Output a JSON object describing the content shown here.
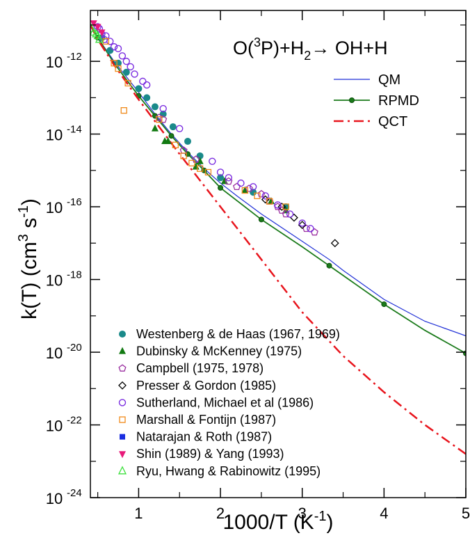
{
  "chart_data": {
    "type": "scatter",
    "title": "O(3P)+H2→ OH+H",
    "title_parts": {
      "a": "O(",
      "sup": "3",
      "b": "P)+H",
      "sub": "2",
      "c": "→ OH+H"
    },
    "xlabel": "1000/T (K-1)",
    "xlabel_parts": {
      "main": "1000/T (K",
      "sup": "-1",
      "close": ")"
    },
    "ylabel": "k(T) (cm3 s-1)",
    "ylabel_parts": {
      "a": "k(T) (cm",
      "sup1": "3",
      "b": " s",
      "sup2": "-1",
      "c": ")"
    },
    "xlim": [
      0.41,
      5
    ],
    "ylim_log10": [
      -24,
      -10.6
    ],
    "yscale": "log",
    "x_ticks": [
      {
        "value": 1,
        "label": "1"
      },
      {
        "value": 2,
        "label": "2"
      },
      {
        "value": 3,
        "label": "3"
      },
      {
        "value": 4,
        "label": "4"
      },
      {
        "value": 5,
        "label": "5"
      }
    ],
    "y_ticks": [
      {
        "exp": -12,
        "base": "10",
        "label": "-12"
      },
      {
        "exp": -14,
        "base": "10",
        "label": "-14"
      },
      {
        "exp": -16,
        "base": "10",
        "label": "-16"
      },
      {
        "exp": -18,
        "base": "10",
        "label": "-18"
      },
      {
        "exp": -20,
        "base": "10",
        "label": "-20"
      },
      {
        "exp": -22,
        "base": "10",
        "label": "-22"
      },
      {
        "exp": -24,
        "base": "10",
        "label": "-24"
      }
    ],
    "lines": [
      {
        "name": "QM",
        "color": "#1f2fd6",
        "style": "solid",
        "x": [
          0.41,
          0.5,
          0.7,
          1.0,
          1.2,
          1.4,
          1.6,
          1.8,
          2.0,
          2.2,
          2.5,
          3.0,
          3.33,
          3.5,
          4.0,
          4.5,
          5.0
        ],
        "y_log10": [
          -11.0,
          -11.35,
          -12.0,
          -12.85,
          -13.45,
          -14.0,
          -14.5,
          -14.95,
          -15.35,
          -15.7,
          -16.2,
          -16.95,
          -17.45,
          -17.75,
          -18.55,
          -19.15,
          -19.55
        ]
      },
      {
        "name": "RPMD",
        "color": "#1a7a1a",
        "style": "solid-markers",
        "marker": "circle",
        "x": [
          0.41,
          0.5,
          0.7,
          1.0,
          1.2,
          1.4,
          1.6,
          1.8,
          2.0,
          2.5,
          3.0,
          3.33,
          4.0,
          4.5,
          5.0
        ],
        "y_log10": [
          -11.0,
          -11.35,
          -12.05,
          -12.95,
          -13.5,
          -14.05,
          -14.55,
          -15.0,
          -15.48,
          -16.35,
          -17.1,
          -17.62,
          -18.68,
          -19.4,
          -20.03
        ],
        "marker_x": [
          0.5,
          1.0,
          1.2,
          1.4,
          1.6,
          1.8,
          2.0,
          2.5,
          3.33,
          4.0,
          5.0
        ]
      },
      {
        "name": "QCT",
        "color": "#e8141c",
        "style": "dash-dot",
        "x": [
          0.41,
          0.5,
          0.7,
          1.0,
          1.5,
          2.0,
          2.5,
          3.0,
          3.5,
          4.0,
          4.5,
          5.0
        ],
        "y_log10": [
          -11.0,
          -11.4,
          -12.1,
          -13.05,
          -14.55,
          -16.0,
          -17.45,
          -18.9,
          -20.1,
          -21.1,
          -22.0,
          -22.8
        ]
      }
    ],
    "experiments": [
      {
        "name": "Westenberg & de Haas (1967, 1969)",
        "color": "#1a8a8a",
        "marker": "filled-circle",
        "x": [
          0.55,
          0.65,
          0.75,
          0.85,
          1.0,
          1.1,
          1.2,
          1.3,
          1.42,
          1.6,
          1.75,
          2.0,
          2.4,
          2.8
        ],
        "y_log10": [
          -11.35,
          -11.7,
          -12.05,
          -12.3,
          -12.75,
          -13.0,
          -13.25,
          -13.45,
          -13.8,
          -14.2,
          -14.6,
          -15.2,
          -15.6,
          -16.0
        ]
      },
      {
        "name": "Dubinsky & McKenney (1975)",
        "color": "#127a12",
        "marker": "filled-triangle",
        "x": [
          1.2,
          1.32,
          1.36,
          1.7,
          1.75,
          2.05,
          2.3,
          2.62,
          2.8
        ],
        "y_log10": [
          -13.85,
          -14.2,
          -14.2,
          -14.9,
          -14.75,
          -15.3,
          -15.55,
          -15.85,
          -16.1
        ]
      },
      {
        "name": "Campbell (1975, 1978)",
        "color": "#9b2fa0",
        "marker": "open-pentagon",
        "x": [
          1.25,
          1.3,
          1.55,
          1.7,
          2.1,
          2.2,
          2.35,
          2.5,
          2.6,
          2.7,
          2.75,
          2.8,
          3.05,
          3.15
        ],
        "y_log10": [
          -13.55,
          -13.6,
          -14.45,
          -14.7,
          -15.3,
          -15.45,
          -15.5,
          -15.65,
          -15.85,
          -16.0,
          -16.1,
          -16.2,
          -16.6,
          -16.7
        ]
      },
      {
        "name": "Presser & Gordon (1985)",
        "color": "#000000",
        "marker": "open-diamond",
        "x": [
          2.55,
          2.75,
          2.9,
          3.0,
          3.4
        ],
        "y_log10": [
          -15.8,
          -16.0,
          -16.3,
          -16.5,
          -17.0
        ]
      },
      {
        "name": "Sutherland, Michael et al (1986)",
        "color": "#7b2ee0",
        "marker": "open-circle",
        "x": [
          0.5,
          0.52,
          0.55,
          0.58,
          0.6,
          0.65,
          0.7,
          0.75,
          0.8,
          0.85,
          0.9,
          0.95,
          1.05,
          1.1,
          1.3,
          1.5,
          1.9,
          2.0,
          2.1,
          2.25,
          2.4,
          2.55,
          2.7,
          2.85,
          3.0,
          3.1
        ],
        "y_log10": [
          -11.05,
          -11.1,
          -11.25,
          -11.4,
          -11.3,
          -11.45,
          -11.6,
          -11.65,
          -11.85,
          -12.0,
          -12.15,
          -12.35,
          -12.55,
          -12.65,
          -13.3,
          -13.85,
          -14.75,
          -15.05,
          -15.2,
          -15.35,
          -15.45,
          -15.7,
          -15.95,
          -16.2,
          -16.45,
          -16.6
        ]
      },
      {
        "name": "Marshall & Fontijn (1987)",
        "color": "#f08a1a",
        "marker": "open-square",
        "x": [
          0.6,
          0.7,
          0.75,
          0.82,
          0.87,
          1.25,
          1.45,
          1.55,
          1.65,
          1.75,
          1.85,
          2.3,
          2.45,
          2.6,
          2.8
        ],
        "y_log10": [
          -11.45,
          -12.05,
          -12.2,
          -13.35,
          -12.6,
          -13.6,
          -14.3,
          -14.6,
          -14.8,
          -14.95,
          -15.05,
          -15.55,
          -15.7,
          -15.85,
          -16.0
        ]
      },
      {
        "name": "Natarajan & Roth (1987)",
        "color": "#1a2ee0",
        "marker": "filled-square",
        "x": [],
        "y_log10": []
      },
      {
        "name": "Shin (1989) & Yang (1993)",
        "color": "#e81a7a",
        "marker": "filled-triangle-down",
        "x": [
          0.45,
          0.5,
          0.55
        ],
        "y_log10": [
          -10.95,
          -11.05,
          -11.2
        ]
      },
      {
        "name": "Ryu, Hwang & Rabinowitz (1995)",
        "color": "#3ee03e",
        "marker": "open-triangle",
        "x": [
          0.42,
          0.45,
          0.48,
          0.5,
          0.52
        ],
        "y_log10": [
          -11.1,
          -11.2,
          -11.25,
          -11.3,
          -11.4
        ]
      }
    ]
  }
}
